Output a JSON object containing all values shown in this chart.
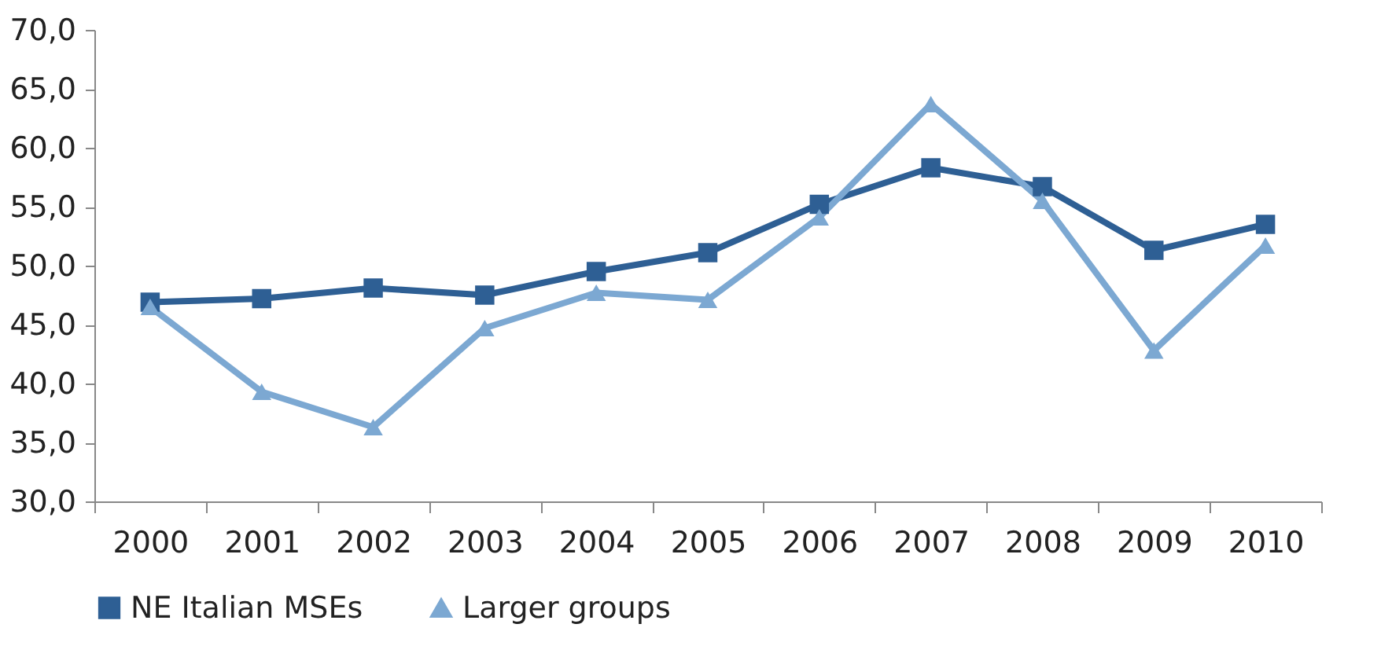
{
  "chart_data": {
    "type": "line",
    "categories": [
      "2000",
      "2001",
      "2002",
      "2003",
      "2004",
      "2005",
      "2006",
      "2007",
      "2008",
      "2009",
      "2010"
    ],
    "series": [
      {
        "name": "NE Italian MSEs",
        "color": "#2e5f94",
        "marker": "square",
        "values": [
          46.9,
          47.2,
          48.1,
          47.5,
          49.5,
          51.1,
          55.2,
          58.3,
          56.7,
          51.3,
          53.5
        ]
      },
      {
        "name": "Larger groups",
        "color": "#7ca8d2",
        "marker": "triangle",
        "values": [
          46.5,
          39.3,
          36.3,
          44.7,
          47.7,
          47.1,
          54.1,
          63.7,
          55.5,
          42.8,
          51.7
        ]
      }
    ],
    "ylim": [
      30,
      70
    ],
    "yticks": [
      {
        "value": 30,
        "label": "30,0"
      },
      {
        "value": 35,
        "label": "35,0"
      },
      {
        "value": 40,
        "label": "40,0"
      },
      {
        "value": 45,
        "label": "45,0"
      },
      {
        "value": 50,
        "label": "50,0"
      },
      {
        "value": 55,
        "label": "55,0"
      },
      {
        "value": 60,
        "label": "60,0"
      },
      {
        "value": 65,
        "label": "65,0"
      },
      {
        "value": 70,
        "label": "70,0"
      }
    ],
    "grid": false,
    "legend": "bottom",
    "line_style": "solid"
  }
}
